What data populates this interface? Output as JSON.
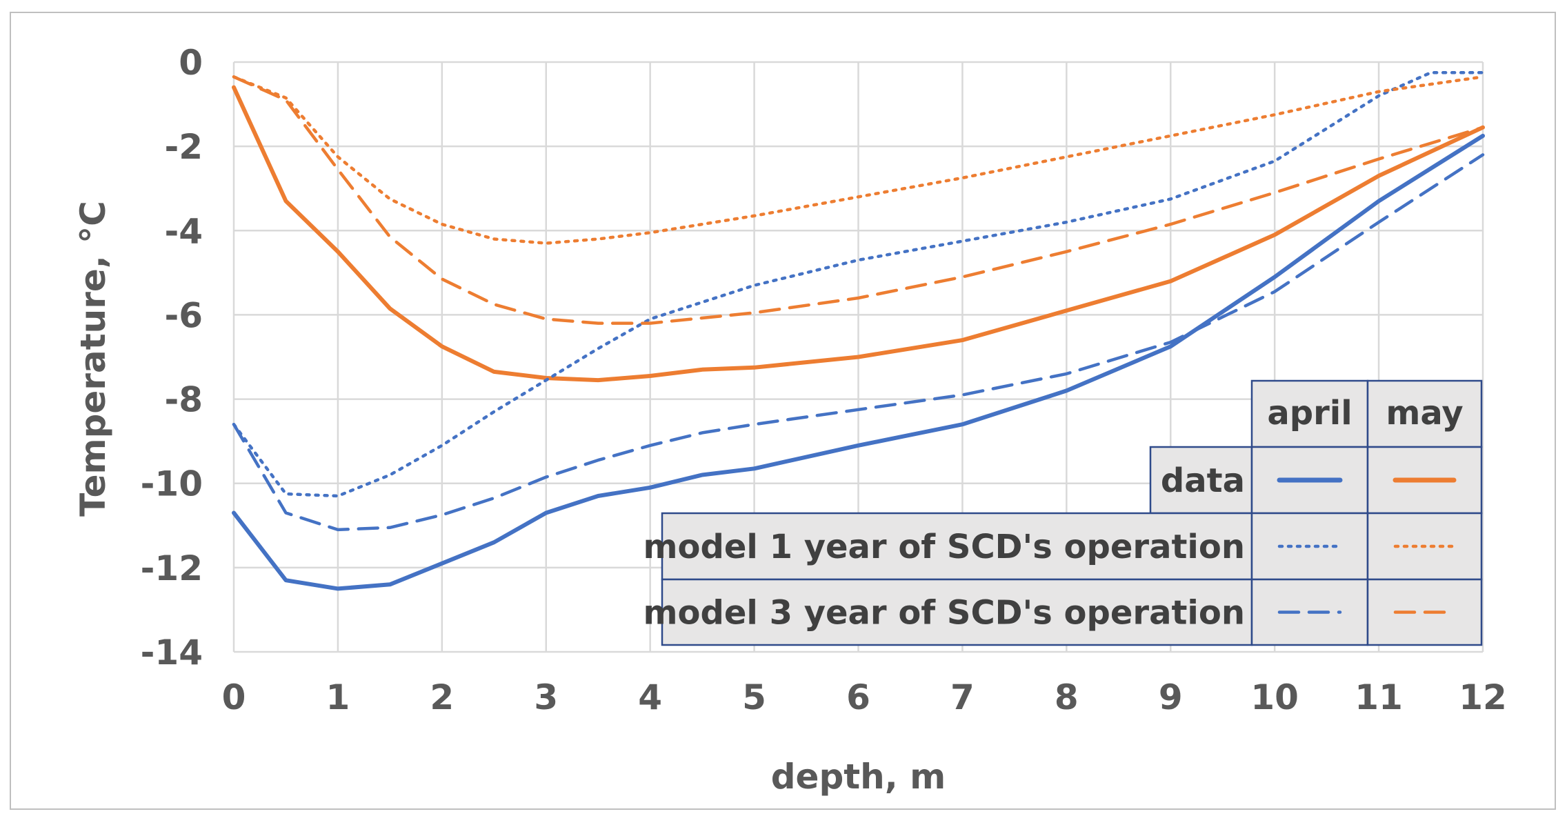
{
  "chart_data": {
    "type": "line",
    "title": "",
    "xlabel": "depth, m",
    "ylabel": "Temperature, °C",
    "xlim": [
      0,
      12
    ],
    "ylim": [
      -14,
      0
    ],
    "xticks": [
      0,
      1,
      2,
      3,
      4,
      5,
      6,
      7,
      8,
      9,
      10,
      11,
      12
    ],
    "yticks": [
      0,
      -2,
      -4,
      -6,
      -8,
      -10,
      -12,
      -14
    ],
    "grid": true,
    "legend_position": "bottom-right table",
    "legend": {
      "columns": [
        "april",
        "may"
      ],
      "rows": [
        "data",
        "model 1 year of SCD's operation",
        "model 3 year of SCD's operation"
      ]
    },
    "colors": {
      "april": "#4472c4",
      "may": "#ed7d31"
    },
    "series": [
      {
        "month": "april",
        "legend_row": "data",
        "style": "solid",
        "color": "#4472c4",
        "x": [
          0,
          0.5,
          1,
          1.5,
          2,
          2.5,
          3,
          3.5,
          4,
          4.5,
          5,
          6,
          7,
          8,
          9,
          10,
          11,
          12
        ],
        "y": [
          -10.7,
          -12.3,
          -12.5,
          -12.4,
          -11.9,
          -11.4,
          -10.7,
          -10.3,
          -10.1,
          -9.8,
          -9.65,
          -9.1,
          -8.6,
          -7.8,
          -6.75,
          -5.1,
          -3.3,
          -1.75
        ]
      },
      {
        "month": "may",
        "legend_row": "data",
        "style": "solid",
        "color": "#ed7d31",
        "x": [
          0,
          0.5,
          1,
          1.5,
          2,
          2.5,
          3,
          3.5,
          4,
          4.5,
          5,
          6,
          7,
          8,
          9,
          10,
          11,
          12
        ],
        "y": [
          -0.6,
          -3.3,
          -4.5,
          -5.85,
          -6.75,
          -7.35,
          -7.5,
          -7.55,
          -7.45,
          -7.3,
          -7.25,
          -7.0,
          -6.6,
          -5.9,
          -5.2,
          -4.1,
          -2.7,
          -1.55
        ]
      },
      {
        "month": "april",
        "legend_row": "model 1 year of SCD's operation",
        "style": "dotted",
        "color": "#4472c4",
        "x": [
          0,
          0.5,
          1,
          1.5,
          2,
          2.5,
          3,
          3.5,
          4,
          4.5,
          5,
          6,
          7,
          8,
          9,
          10,
          11,
          11.5,
          12
        ],
        "y": [
          -8.6,
          -10.25,
          -10.3,
          -9.8,
          -9.1,
          -8.3,
          -7.55,
          -6.8,
          -6.1,
          -5.7,
          -5.3,
          -4.7,
          -4.25,
          -3.8,
          -3.25,
          -2.35,
          -0.8,
          -0.25,
          -0.25
        ]
      },
      {
        "month": "may",
        "legend_row": "model 1 year of SCD's operation",
        "style": "dotted",
        "color": "#ed7d31",
        "x": [
          0,
          0.5,
          1,
          1.5,
          2,
          2.5,
          3,
          3.5,
          4,
          5,
          6,
          7,
          8,
          9,
          10,
          11,
          12
        ],
        "y": [
          -0.35,
          -0.85,
          -2.25,
          -3.25,
          -3.85,
          -4.2,
          -4.3,
          -4.2,
          -4.05,
          -3.65,
          -3.2,
          -2.75,
          -2.25,
          -1.75,
          -1.25,
          -0.7,
          -0.35
        ]
      },
      {
        "month": "april",
        "legend_row": "model 3 year of SCD's operation",
        "style": "dashed",
        "color": "#4472c4",
        "x": [
          0,
          0.5,
          1,
          1.5,
          2,
          2.5,
          3,
          3.5,
          4,
          4.5,
          5,
          6,
          7,
          8,
          9,
          10,
          11,
          12
        ],
        "y": [
          -8.6,
          -10.7,
          -11.1,
          -11.05,
          -10.75,
          -10.35,
          -9.85,
          -9.45,
          -9.1,
          -8.8,
          -8.6,
          -8.25,
          -7.9,
          -7.4,
          -6.65,
          -5.45,
          -3.8,
          -2.2
        ]
      },
      {
        "month": "may",
        "legend_row": "model 3 year of SCD's operation",
        "style": "dashed",
        "color": "#ed7d31",
        "x": [
          0,
          0.5,
          1,
          1.5,
          2,
          2.5,
          3,
          3.5,
          4,
          5,
          6,
          7,
          8,
          9,
          10,
          11,
          12
        ],
        "y": [
          -0.35,
          -0.9,
          -2.55,
          -4.15,
          -5.15,
          -5.75,
          -6.1,
          -6.2,
          -6.2,
          -5.95,
          -5.6,
          -5.1,
          -4.5,
          -3.85,
          -3.1,
          -2.3,
          -1.55
        ]
      }
    ]
  }
}
